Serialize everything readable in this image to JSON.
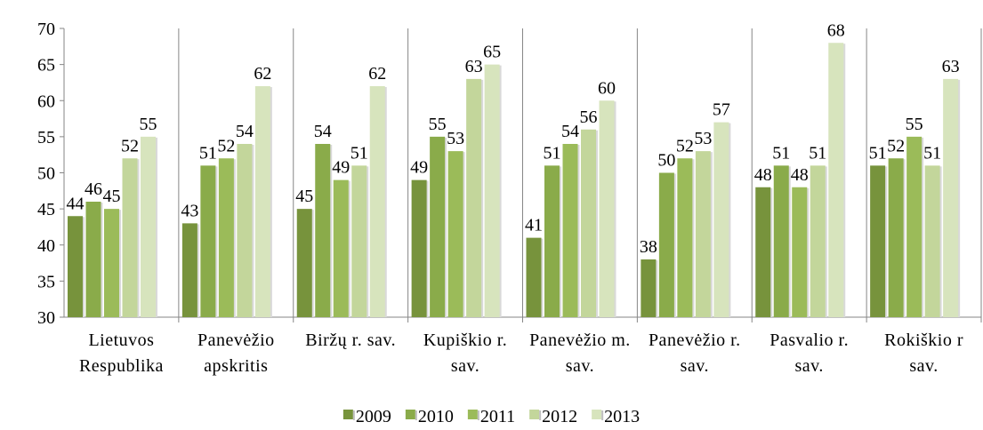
{
  "chart_data": {
    "type": "bar",
    "categories": [
      "Lietuvos Respublika",
      "Panevėžio apskritis",
      "Biržų r. sav.",
      "Kupiškio r. sav.",
      "Panevėžio m. sav.",
      "Panevėžio r. sav.",
      "Pasvalio r. sav.",
      "Rokiškio r sav."
    ],
    "series": [
      {
        "name": "2009",
        "color": "#77933c",
        "values": [
          44,
          43,
          45,
          49,
          41,
          38,
          48,
          51
        ]
      },
      {
        "name": "2010",
        "color": "#8aab4a",
        "values": [
          46,
          51,
          54,
          55,
          51,
          50,
          51,
          52
        ]
      },
      {
        "name": "2011",
        "color": "#9bbb59",
        "values": [
          45,
          52,
          49,
          53,
          54,
          52,
          48,
          55
        ]
      },
      {
        "name": "2012",
        "color": "#c3d69b",
        "values": [
          52,
          54,
          51,
          63,
          56,
          53,
          51,
          51
        ]
      },
      {
        "name": "2013",
        "color": "#d7e4bd",
        "values": [
          55,
          62,
          62,
          65,
          60,
          57,
          68,
          63
        ]
      }
    ],
    "ylim": [
      30,
      70
    ],
    "yticks": [
      30,
      35,
      40,
      45,
      50,
      55,
      60,
      65,
      70
    ],
    "legend": "bottom"
  }
}
